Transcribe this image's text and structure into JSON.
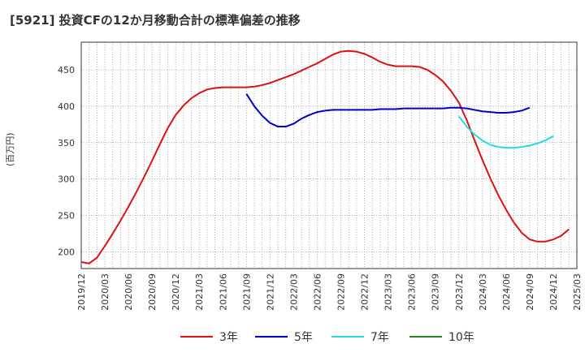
{
  "chart_data": {
    "type": "line",
    "title": "[5921]  投資CFの12か月移動合計の標準偏差の推移",
    "ylabel": "(百万円)",
    "xlabel": "",
    "ylim": [
      177,
      488
    ],
    "yticks": [
      200,
      250,
      300,
      350,
      400,
      450
    ],
    "x_tick_labels": [
      "2019/12",
      "2020/03",
      "2020/06",
      "2020/09",
      "2020/12",
      "2021/03",
      "2021/06",
      "2021/09",
      "2021/12",
      "2022/03",
      "2022/06",
      "2022/09",
      "2022/12",
      "2023/03",
      "2023/06",
      "2023/09",
      "2023/12",
      "2024/03",
      "2024/06",
      "2024/09",
      "2024/12",
      "2025/03"
    ],
    "grid": true,
    "legend_position": "bottom",
    "series": [
      {
        "name": "3年",
        "color": "#dd1111",
        "start_index": 0,
        "values": [
          186,
          184,
          192,
          208,
          225,
          243,
          262,
          282,
          303,
          325,
          348,
          370,
          388,
          401,
          411,
          418,
          423,
          425,
          426,
          426,
          426,
          426,
          427,
          429,
          432,
          436,
          440,
          444,
          449,
          454,
          459,
          465,
          471,
          475,
          476,
          475,
          472,
          467,
          461,
          457,
          455,
          455,
          455,
          454,
          450,
          443,
          434,
          421,
          405,
          381,
          353,
          326,
          301,
          278,
          258,
          240,
          226,
          217,
          214,
          214,
          217,
          222,
          231
        ]
      },
      {
        "name": "5年",
        "color": "#0000cc",
        "start_index": 21,
        "values": [
          417,
          400,
          387,
          377,
          372,
          372,
          376,
          383,
          388,
          392,
          394,
          395,
          395,
          395,
          395,
          395,
          395,
          396,
          396,
          396,
          397,
          397,
          397,
          397,
          397,
          397,
          398,
          398,
          397,
          395,
          393,
          392,
          391,
          391,
          392,
          394,
          398
        ]
      },
      {
        "name": "7年",
        "color": "#22dddd",
        "start_index": 48,
        "values": [
          386,
          372,
          361,
          353,
          347,
          344,
          343,
          343,
          344,
          346,
          349,
          353,
          359
        ]
      },
      {
        "name": "10年",
        "color": "#228822",
        "start_index": 0,
        "values": []
      }
    ]
  }
}
